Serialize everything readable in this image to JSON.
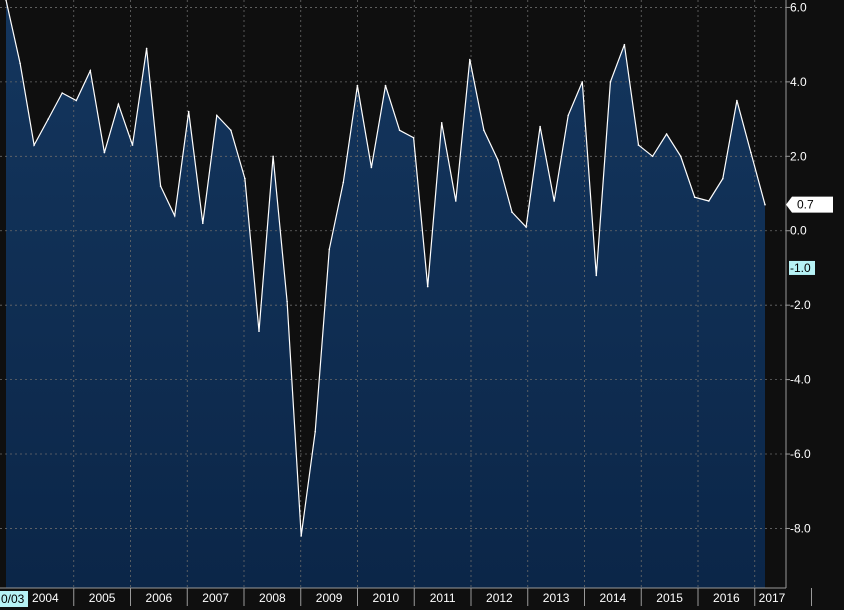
{
  "chart_data": {
    "type": "area",
    "title": "",
    "xlabel": "",
    "ylabel": "",
    "ylim": [
      -9.6,
      6.2
    ],
    "grid": true,
    "y_ticks": [
      "6.0",
      "4.0",
      "2.0",
      "0.0",
      "-2.0",
      "-4.0",
      "-6.0",
      "-8.0"
    ],
    "y_tick_values": [
      6,
      4,
      2,
      0,
      -2,
      -4,
      -6,
      -8
    ],
    "x_ticks": [
      "2004",
      "2005",
      "2006",
      "2007",
      "2008",
      "2009",
      "2010",
      "2011",
      "2012",
      "2013",
      "2014",
      "2015",
      "2016",
      "2017"
    ],
    "start_label": "0/03",
    "last_value_label": "0.7",
    "secondary_label": "-1.0",
    "secondary_value": -1.0,
    "x": [
      "2003-Q3",
      "2003-Q4",
      "2004-Q1",
      "2004-Q2",
      "2004-Q3",
      "2004-Q4",
      "2005-Q1",
      "2005-Q2",
      "2005-Q3",
      "2005-Q4",
      "2006-Q1",
      "2006-Q2",
      "2006-Q3",
      "2006-Q4",
      "2007-Q1",
      "2007-Q2",
      "2007-Q3",
      "2007-Q4",
      "2008-Q1",
      "2008-Q2",
      "2008-Q3",
      "2008-Q4",
      "2009-Q1",
      "2009-Q2",
      "2009-Q3",
      "2009-Q4",
      "2010-Q1",
      "2010-Q2",
      "2010-Q3",
      "2010-Q4",
      "2011-Q1",
      "2011-Q2",
      "2011-Q3",
      "2011-Q4",
      "2012-Q1",
      "2012-Q2",
      "2012-Q3",
      "2012-Q4",
      "2013-Q1",
      "2013-Q2",
      "2013-Q3",
      "2013-Q4",
      "2014-Q1",
      "2014-Q2",
      "2014-Q3",
      "2014-Q4",
      "2015-Q1",
      "2015-Q2",
      "2015-Q3",
      "2015-Q4",
      "2016-Q1",
      "2016-Q2",
      "2016-Q3",
      "2016-Q4",
      "2017-Q1"
    ],
    "values": [
      6.2,
      4.5,
      2.3,
      3.0,
      3.7,
      3.5,
      4.3,
      2.1,
      3.4,
      2.3,
      4.9,
      1.2,
      0.4,
      3.2,
      0.2,
      3.1,
      2.7,
      1.4,
      -2.7,
      2.0,
      -1.9,
      -8.2,
      -5.4,
      -0.5,
      1.3,
      3.9,
      1.7,
      3.9,
      2.7,
      2.5,
      -1.5,
      2.9,
      0.8,
      4.6,
      2.7,
      1.9,
      0.5,
      0.1,
      2.8,
      0.8,
      3.1,
      4.0,
      -1.2,
      4.0,
      5.0,
      2.3,
      2.0,
      2.6,
      2.0,
      0.9,
      0.8,
      1.4,
      3.5,
      2.1,
      0.7
    ],
    "colors": {
      "fill_top": "#14365e",
      "fill_bottom": "#0b2648",
      "line": "#ffffff",
      "background": "#0f0f0f",
      "grid": "#6a6a6a",
      "secondary_tag": "#b6f2f5"
    }
  }
}
